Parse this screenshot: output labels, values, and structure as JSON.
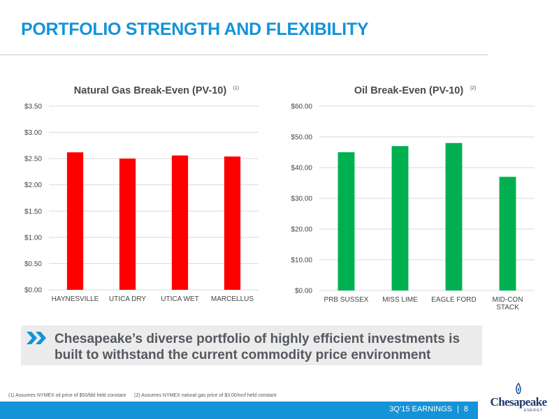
{
  "slide": {
    "title": "PORTFOLIO STRENGTH AND FLEXIBILITY",
    "accent_color": "#1493d8"
  },
  "chart_data": [
    {
      "type": "bar",
      "title": "Natural Gas Break-Even (PV-10)",
      "title_note": "(1)",
      "categories": [
        "HAYNESVILLE",
        "UTICA DRY",
        "UTICA WET",
        "MARCELLUS"
      ],
      "values": [
        2.62,
        2.5,
        2.56,
        2.54
      ],
      "ylim": [
        0,
        3.5
      ],
      "yticks": [
        0,
        0.5,
        1.0,
        1.5,
        2.0,
        2.5,
        3.0,
        3.5
      ],
      "ytick_labels": [
        "$0.00",
        "$0.50",
        "$1.00",
        "$1.50",
        "$2.00",
        "$2.50",
        "$3.00",
        "$3.50"
      ],
      "bar_color": "#ff0000",
      "grid": true,
      "xlabel": "",
      "ylabel": ""
    },
    {
      "type": "bar",
      "title": "Oil Break-Even (PV-10)",
      "title_note": "(2)",
      "categories": [
        "PRB SUSSEX",
        "MISS LIME",
        "EAGLE FORD",
        "MID-CON STACK"
      ],
      "category_lines": [
        [
          "PRB SUSSEX"
        ],
        [
          "MISS LIME"
        ],
        [
          "EAGLE FORD"
        ],
        [
          "MID-CON",
          "STACK"
        ]
      ],
      "values": [
        45,
        47,
        48,
        37
      ],
      "ylim": [
        0,
        60
      ],
      "yticks": [
        0,
        10,
        20,
        30,
        40,
        50,
        60
      ],
      "ytick_labels": [
        "$0.00",
        "$10.00",
        "$20.00",
        "$30.00",
        "$40.00",
        "$50.00",
        "$60.00"
      ],
      "bar_color": "#00b050",
      "grid": true,
      "xlabel": "",
      "ylabel": ""
    }
  ],
  "banner": {
    "text": "Chesapeake’s diverse portfolio of highly efficient investments is built to withstand the current commodity price environment",
    "icon": "double-chevron-right-icon"
  },
  "footnotes": [
    "(1)  Assumes NYMEX oil price of $50/bbl held constant",
    "(2)  Assumes NYMEX natural gas price of $3.00/mcf held constant"
  ],
  "footer": {
    "label": "3Q’15 EARNINGS",
    "separator": "|",
    "page": "8"
  },
  "logo": {
    "word": "Chesapeake",
    "sub": "ENERGY"
  }
}
